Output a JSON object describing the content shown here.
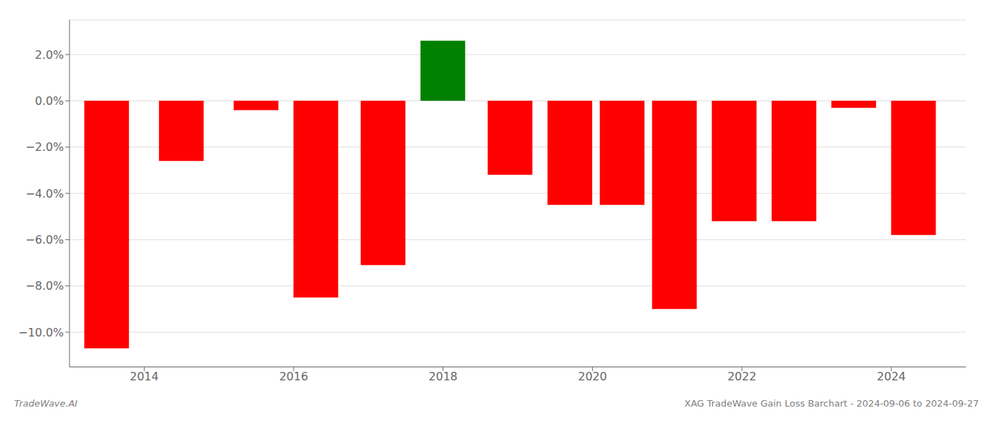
{
  "chart_data": {
    "type": "bar",
    "title": "XAG TradeWave Gain Loss Barchart - 2024-09-06 to 2024-09-27",
    "annotations": [
      "TradeWave.AI"
    ],
    "x": [
      2013.5,
      2014.5,
      2015.5,
      2016.3,
      2017.2,
      2018.0,
      2018.9,
      2019.7,
      2020.4,
      2021.1,
      2021.9,
      2022.7,
      2023.5,
      2024.3
    ],
    "values": [
      -10.7,
      -2.6,
      -0.4,
      -8.5,
      -7.1,
      2.6,
      -3.2,
      -4.5,
      -4.5,
      -9.0,
      -5.2,
      -5.2,
      -0.3,
      -5.8
    ],
    "colors": [
      "#ff0000",
      "#ff0000",
      "#ff0000",
      "#ff0000",
      "#ff0000",
      "#008000",
      "#ff0000",
      "#ff0000",
      "#ff0000",
      "#ff0000",
      "#ff0000",
      "#ff0000",
      "#ff0000",
      "#ff0000"
    ],
    "xlim": [
      2013.0,
      2025.0
    ],
    "xticks": [
      2014,
      2016,
      2018,
      2020,
      2022,
      2024
    ],
    "ylim": [
      -11.5,
      3.5
    ],
    "yticks": [
      {
        "value": -10,
        "label": "−10.0%"
      },
      {
        "value": -8,
        "label": "−8.0%"
      },
      {
        "value": -6,
        "label": "−6.0%"
      },
      {
        "value": -4,
        "label": "−4.0%"
      },
      {
        "value": -2,
        "label": "−2.0%"
      },
      {
        "value": 0,
        "label": "0.0%"
      },
      {
        "value": 2,
        "label": "2.0%"
      }
    ],
    "grid": true
  }
}
